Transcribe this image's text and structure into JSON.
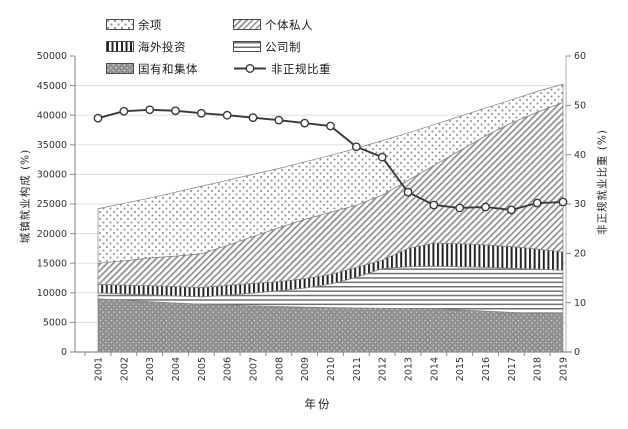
{
  "chart_data": {
    "type": "area",
    "stacked": true,
    "title": "",
    "x": [
      2001,
      2002,
      2003,
      2004,
      2005,
      2006,
      2007,
      2008,
      2009,
      2010,
      2011,
      2012,
      2013,
      2014,
      2015,
      2016,
      2017,
      2018,
      2019
    ],
    "xlabel": "年份",
    "ylabel_left": "城镇就业构成 (%)",
    "ylabel_right": "非正规就业比重 (%)",
    "ylim_left": [
      0,
      50000
    ],
    "ylim_right": [
      0,
      60
    ],
    "yticks_left": [
      0,
      5000,
      10000,
      15000,
      20000,
      25000,
      30000,
      35000,
      40000,
      45000,
      50000
    ],
    "yticks_right": [
      0,
      10,
      20,
      30,
      40,
      50,
      60
    ],
    "grid": true,
    "legend_position": "top-inside",
    "series": [
      {
        "key": "state-and-collective",
        "name": "国有和集体",
        "type": "area-stack",
        "pattern": "darkdots",
        "axis": "left",
        "values": [
          9000,
          8750,
          8500,
          8280,
          8080,
          7930,
          7800,
          7680,
          7580,
          7500,
          7440,
          7400,
          7360,
          7300,
          7100,
          6900,
          6700,
          6500,
          6600
        ]
      },
      {
        "key": "corporate",
        "name": "公司制",
        "type": "area-stack",
        "pattern": "hline",
        "axis": "left",
        "values": [
          990,
          1050,
          1150,
          1200,
          1230,
          1670,
          2150,
          2670,
          3220,
          4000,
          5160,
          6700,
          7040,
          7180,
          7300,
          7400,
          7450,
          7500,
          7210
        ]
      },
      {
        "key": "foreign-invested",
        "name": "海外投资",
        "type": "area-stack",
        "pattern": "vbar",
        "axis": "left",
        "values": [
          1460,
          1500,
          1550,
          1570,
          1590,
          1650,
          1650,
          1550,
          1600,
          1600,
          1700,
          1400,
          3100,
          3920,
          3900,
          3800,
          3650,
          3400,
          3090
        ]
      },
      {
        "key": "private-and-individual",
        "name": "个体私人",
        "type": "area-stack",
        "pattern": "diag",
        "axis": "left",
        "values": [
          3550,
          4100,
          4700,
          5150,
          5700,
          6750,
          7900,
          9100,
          10000,
          10500,
          10500,
          11000,
          11500,
          13100,
          15700,
          18400,
          20900,
          23100,
          25250
        ]
      },
      {
        "key": "residual",
        "name": "余项",
        "type": "area-stack",
        "pattern": "dots",
        "axis": "left",
        "values": [
          9200,
          9700,
          10100,
          10800,
          11400,
          11000,
          10500,
          10000,
          9700,
          9600,
          9600,
          9200,
          8000,
          6900,
          5800,
          4700,
          3900,
          3500,
          3100
        ]
      },
      {
        "key": "informal-employment-share",
        "name": "非正规比重",
        "type": "line",
        "pattern": "line",
        "axis": "right",
        "values": [
          47.4,
          48.8,
          49.1,
          48.9,
          48.4,
          48.0,
          47.5,
          47.0,
          46.4,
          45.8,
          41.6,
          39.5,
          32.4,
          29.8,
          29.2,
          29.4,
          28.8,
          30.2,
          30.4
        ]
      }
    ],
    "colors": {
      "line": "#3a3a3a",
      "grid": "#dcdcdc",
      "axis": "#8c8c8c",
      "tick_text": "#333333"
    }
  }
}
